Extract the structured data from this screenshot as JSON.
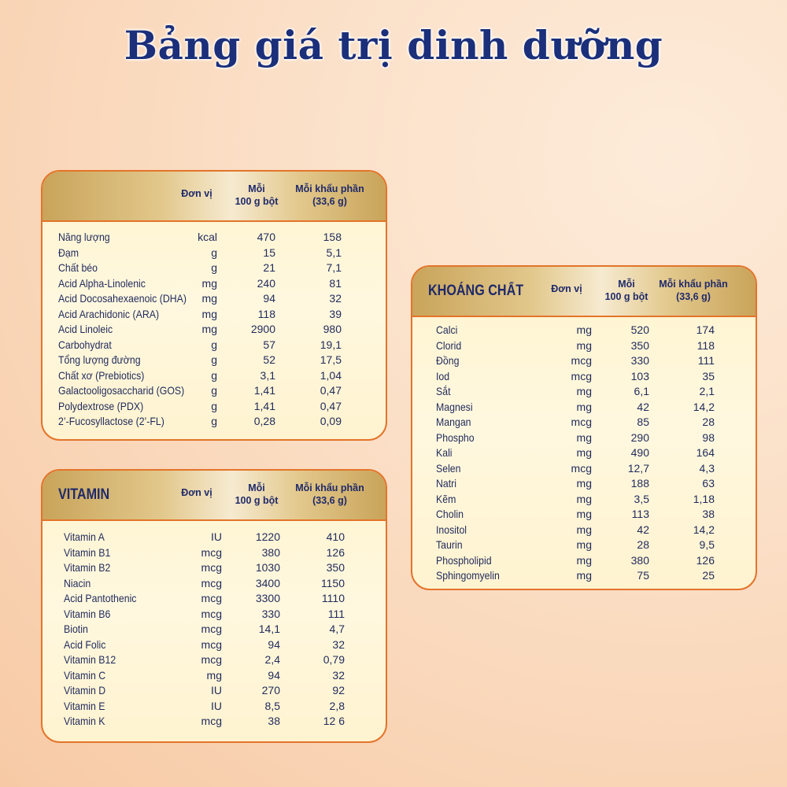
{
  "title": "Bảng giá trị dinh dưỡng",
  "headers": {
    "unit": "Đơn vị",
    "per100_line1": "Mỗi",
    "per100_line2": "100 g bột",
    "serving_line1": "Mỗi khẩu phần",
    "serving_line2": "(33,6 g)"
  },
  "colors": {
    "accent_border": "#e4742a",
    "text": "#1f2a5c",
    "title": "#1b2f7a"
  },
  "panels": {
    "macros": {
      "title": "",
      "rows": [
        [
          "Năng lượng",
          "kcal",
          "470",
          "158"
        ],
        [
          "Đạm",
          "g",
          "15",
          "5,1"
        ],
        [
          "Chất béo",
          "g",
          "21",
          "7,1"
        ],
        [
          "Acid Alpha-Linolenic",
          "mg",
          "240",
          "81"
        ],
        [
          "Acid Docosahexaenoic (DHA)",
          "mg",
          "94",
          "32"
        ],
        [
          "Acid Arachidonic (ARA)",
          "mg",
          "118",
          "39"
        ],
        [
          "Acid Linoleic",
          "mg",
          "2900",
          "980"
        ],
        [
          "Carbohydrat",
          "g",
          "57",
          "19,1"
        ],
        [
          "Tổng lượng đường",
          "g",
          "52",
          "17,5"
        ],
        [
          "Chất xơ (Prebiotics)",
          "g",
          "3,1",
          "1,04"
        ],
        [
          "Galactooligosaccharid (GOS)",
          "g",
          "1,41",
          "0,47"
        ],
        [
          "Polydextrose (PDX)",
          "g",
          "1,41",
          "0,47"
        ],
        [
          "2’-Fucosyllactose (2’-FL)",
          "g",
          "0,28",
          "0,09"
        ]
      ]
    },
    "vitamin": {
      "title": "VITAMIN",
      "rows": [
        [
          "Vitamin A",
          "IU",
          "1220",
          "410"
        ],
        [
          "Vitamin B1",
          "mcg",
          "380",
          "126"
        ],
        [
          "Vitamin B2",
          "mcg",
          "1030",
          "350"
        ],
        [
          "Niacin",
          "mcg",
          "3400",
          "1150"
        ],
        [
          "Acid Pantothenic",
          "mcg",
          "3300",
          "1110"
        ],
        [
          "Vitamin B6",
          "mcg",
          "330",
          "111"
        ],
        [
          "Biotin",
          "mcg",
          "14,1",
          "4,7"
        ],
        [
          "Acid Folic",
          "mcg",
          "94",
          "32"
        ],
        [
          "Vitamin B12",
          "mcg",
          "2,4",
          "0,79"
        ],
        [
          "Vitamin C",
          "mg",
          "94",
          "32"
        ],
        [
          "Vitamin D",
          "IU",
          "270",
          "92"
        ],
        [
          "Vitamin E",
          "IU",
          "8,5",
          "2,8"
        ],
        [
          "Vitamin K",
          "mcg",
          "38",
          "12 6"
        ]
      ]
    },
    "minerals": {
      "title": "KHOÁNG CHẤT",
      "rows": [
        [
          "Calci",
          "mg",
          "520",
          "174"
        ],
        [
          "Clorid",
          "mg",
          "350",
          "118"
        ],
        [
          "Đồng",
          "mcg",
          "330",
          "111"
        ],
        [
          "Iod",
          "mcg",
          "103",
          "35"
        ],
        [
          "Sắt",
          "mg",
          "6,1",
          "2,1"
        ],
        [
          "Magnesi",
          "mg",
          "42",
          "14,2"
        ],
        [
          "Mangan",
          "mcg",
          "85",
          "28"
        ],
        [
          "Phospho",
          "mg",
          "290",
          "98"
        ],
        [
          "Kali",
          "mg",
          "490",
          "164"
        ],
        [
          "Selen",
          "mcg",
          "12,7",
          "4,3"
        ],
        [
          "Natri",
          "mg",
          "188",
          "63"
        ],
        [
          "Kẽm",
          "mg",
          "3,5",
          "1,18"
        ],
        [
          "Cholin",
          "mg",
          "113",
          "38"
        ],
        [
          "Inositol",
          "mg",
          "42",
          "14,2"
        ],
        [
          "Taurin",
          "mg",
          "28",
          "9,5"
        ],
        [
          "Phospholipid",
          "mg",
          "380",
          "126"
        ],
        [
          "Sphingomyelin",
          "mg",
          "75",
          "25"
        ]
      ]
    }
  }
}
